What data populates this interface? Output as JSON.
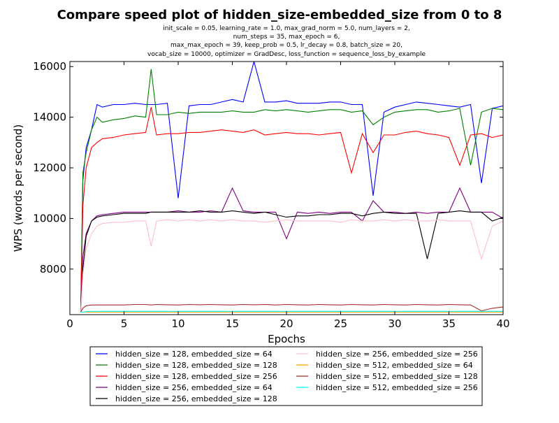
{
  "chart_data": {
    "type": "line",
    "title": "Compare speed plot of hidden_size-embedded_size from 0 to 8",
    "subtitle_lines": [
      "init_scale = 0.05, learning_rate = 1.0, max_grad_norm = 5.0, num_layers = 2,",
      "num_steps = 35, max_epoch = 6,",
      "max_max_epoch = 39, keep_prob = 0.5, lr_decay = 0.8, batch_size = 20,",
      "vocab_size = 10000, optimizer = GradDesc, loss_function = sequence_loss_by_example"
    ],
    "xlabel": "Epochs",
    "ylabel": "WPS (words per second)",
    "xlim": [
      0,
      40
    ],
    "ylim": [
      6200,
      16200
    ],
    "xticks": [
      0,
      5,
      10,
      15,
      20,
      25,
      30,
      35,
      40
    ],
    "yticks": [
      8000,
      10000,
      12000,
      14000,
      16000
    ],
    "grid": false,
    "legend_placement": "below",
    "x": [
      1,
      1.2,
      1.5,
      2,
      2.5,
      3,
      4,
      5,
      6,
      7,
      7.5,
      8,
      9,
      10,
      11,
      12,
      13,
      14,
      15,
      16,
      17,
      18,
      19,
      20,
      21,
      22,
      23,
      24,
      25,
      26,
      27,
      28,
      29,
      30,
      31,
      32,
      33,
      34,
      35,
      36,
      37,
      38,
      39,
      40
    ],
    "series": [
      {
        "name": "hidden_size = 128, embedded_size = 64",
        "color": "#0000ff",
        "values": [
          6400,
          11500,
          12800,
          13500,
          14500,
          14400,
          14500,
          14500,
          14550,
          14500,
          14500,
          14500,
          14550,
          10800,
          14450,
          14500,
          14500,
          14600,
          14700,
          14600,
          16200,
          14600,
          14600,
          14650,
          14550,
          14550,
          14550,
          14600,
          14600,
          14500,
          14500,
          10900,
          14200,
          14400,
          14500,
          14600,
          14550,
          14500,
          14450,
          14400,
          14500,
          11400,
          14350,
          14450
        ]
      },
      {
        "name": "hidden_size = 128, embedded_size = 128",
        "color": "#008000",
        "values": [
          6300,
          11800,
          12600,
          13500,
          14000,
          13800,
          13900,
          13950,
          14050,
          14000,
          15900,
          14100,
          14100,
          14200,
          14150,
          14200,
          14200,
          14200,
          14250,
          14200,
          14200,
          14300,
          14250,
          14300,
          14250,
          14200,
          14250,
          14300,
          14300,
          14200,
          14250,
          13700,
          14000,
          14200,
          14250,
          14300,
          14300,
          14200,
          14250,
          14350,
          12100,
          14200,
          14350,
          14300
        ]
      },
      {
        "name": "hidden_size = 128, embedded_size = 256",
        "color": "#ff0000",
        "values": [
          6300,
          10500,
          12000,
          12800,
          13000,
          13150,
          13200,
          13300,
          13350,
          13400,
          14400,
          13300,
          13350,
          13350,
          13400,
          13400,
          13450,
          13500,
          13450,
          13400,
          13500,
          13300,
          13350,
          13400,
          13350,
          13350,
          13300,
          13350,
          13400,
          11800,
          13350,
          12600,
          13300,
          13300,
          13400,
          13450,
          13350,
          13300,
          13200,
          12100,
          13300,
          13350,
          13200,
          13300
        ]
      },
      {
        "name": "hidden_size = 256, embedded_size = 64",
        "color": "#800080",
        "values": [
          6300,
          8500,
          9400,
          9900,
          10100,
          10150,
          10200,
          10250,
          10250,
          10250,
          10250,
          10250,
          10250,
          10300,
          10250,
          10250,
          10300,
          10250,
          11200,
          10300,
          10250,
          10250,
          10250,
          9200,
          10250,
          10200,
          10250,
          10200,
          10250,
          10250,
          9900,
          10700,
          10250,
          10250,
          10200,
          10250,
          10200,
          10250,
          10250,
          11200,
          10250,
          10250,
          10250,
          10000
        ]
      },
      {
        "name": "hidden_size = 256, embedded_size = 128",
        "color": "#000000",
        "values": [
          6300,
          8000,
          9300,
          9900,
          10050,
          10100,
          10150,
          10200,
          10200,
          10200,
          10250,
          10250,
          10250,
          10250,
          10250,
          10300,
          10250,
          10250,
          10300,
          10250,
          10200,
          10250,
          10150,
          10050,
          10100,
          10100,
          10150,
          10150,
          10200,
          10200,
          10100,
          10200,
          10250,
          10200,
          10200,
          10200,
          8400,
          10200,
          10250,
          10300,
          10250,
          10250,
          9900,
          10050
        ]
      },
      {
        "name": "hidden_size = 256, embedded_size = 256",
        "color": "#ffc0cb",
        "values": [
          6300,
          7800,
          8800,
          9400,
          9700,
          9800,
          9850,
          9850,
          9900,
          9900,
          8900,
          9900,
          9950,
          9900,
          9950,
          9900,
          9950,
          9900,
          9950,
          9900,
          9900,
          9850,
          9900,
          9950,
          9900,
          9900,
          9900,
          9900,
          9850,
          9950,
          9900,
          9900,
          9950,
          9900,
          9950,
          9900,
          9900,
          9950,
          9900,
          9900,
          9900,
          8400,
          9700,
          9900
        ]
      },
      {
        "name": "hidden_size = 512, embedded_size = 64",
        "color": "#ffa500",
        "values": [
          6300,
          6300,
          6300,
          6300,
          6300,
          6300,
          6300,
          6300,
          6300,
          6300,
          6300,
          6300,
          6300,
          6300,
          6300,
          6300,
          6300,
          6300,
          6300,
          6300,
          6300,
          6300,
          6300,
          6300,
          6300,
          6300,
          6300,
          6300,
          6300,
          6300,
          6300,
          6300,
          6300,
          6300,
          6300,
          6300,
          6300,
          6300,
          6300,
          6300,
          6300,
          6300,
          6300,
          6300
        ]
      },
      {
        "name": "hidden_size = 512, embedded_size = 128",
        "color": "#a52a2a",
        "values": [
          6300,
          6450,
          6550,
          6580,
          6580,
          6580,
          6580,
          6580,
          6600,
          6600,
          6580,
          6600,
          6590,
          6580,
          6600,
          6590,
          6600,
          6590,
          6580,
          6600,
          6590,
          6600,
          6580,
          6600,
          6590,
          6580,
          6600,
          6590,
          6580,
          6600,
          6590,
          6580,
          6600,
          6590,
          6580,
          6600,
          6590,
          6580,
          6600,
          6590,
          6580,
          6350,
          6450,
          6500
        ]
      },
      {
        "name": "hidden_size = 512, embedded_size = 256",
        "color": "#00ffff",
        "values": [
          6300,
          6300,
          6320,
          6330,
          6330,
          6330,
          6330,
          6330,
          6330,
          6330,
          6330,
          6330,
          6330,
          6330,
          6330,
          6330,
          6330,
          6330,
          6330,
          6330,
          6330,
          6330,
          6330,
          6330,
          6330,
          6330,
          6330,
          6330,
          6330,
          6330,
          6330,
          6330,
          6330,
          6330,
          6330,
          6330,
          6330,
          6330,
          6330,
          6330,
          6330,
          6330,
          6330,
          6330
        ]
      }
    ]
  }
}
